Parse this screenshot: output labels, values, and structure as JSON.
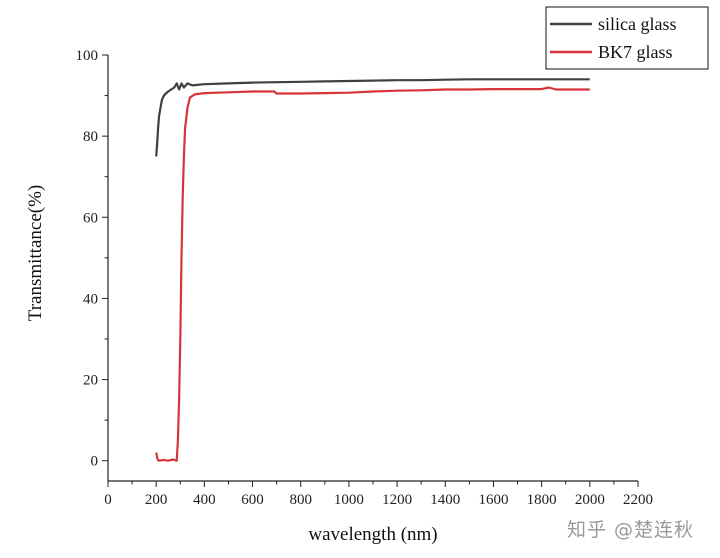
{
  "chart_data": {
    "type": "line",
    "title": "",
    "xlabel": "wavelength (nm)",
    "ylabel": "Transmittance(%)",
    "xlim": [
      0,
      2200
    ],
    "ylim": [
      -5,
      100
    ],
    "xticks": [
      0,
      200,
      400,
      600,
      800,
      1000,
      1200,
      1400,
      1600,
      1800,
      2000,
      2200
    ],
    "yticks": [
      0,
      20,
      40,
      60,
      80,
      100
    ],
    "grid": false,
    "legend": "top-right-outside",
    "series": [
      {
        "name": "silica glass",
        "color": "#404040",
        "x": [
          200,
          204,
          208,
          212,
          218,
          224,
          232,
          240,
          250,
          262,
          275,
          285,
          295,
          305,
          315,
          330,
          350,
          400,
          500,
          600,
          700,
          800,
          900,
          1000,
          1100,
          1200,
          1300,
          1400,
          1500,
          1600,
          1700,
          1800,
          1900,
          2000
        ],
        "y": [
          75,
          78,
          82,
          85,
          87,
          89,
          90,
          90.5,
          91,
          91.5,
          92,
          93,
          91.5,
          93,
          92,
          93,
          92.5,
          92.8,
          93,
          93.2,
          93.3,
          93.4,
          93.5,
          93.6,
          93.7,
          93.8,
          93.8,
          93.9,
          94,
          94,
          94,
          94,
          94,
          94
        ]
      },
      {
        "name": "BK7 glass",
        "color": "#d6333a",
        "x": [
          200,
          205,
          210,
          230,
          250,
          270,
          285,
          290,
          295,
          300,
          305,
          310,
          315,
          320,
          330,
          340,
          360,
          400,
          500,
          600,
          690,
          700,
          800,
          900,
          1000,
          1100,
          1200,
          1300,
          1400,
          1500,
          1600,
          1700,
          1800,
          1830,
          1860,
          1900,
          2000
        ],
        "y": [
          2,
          0.5,
          0,
          0.2,
          0,
          0.3,
          0,
          5,
          15,
          30,
          50,
          65,
          75,
          82,
          87,
          89.5,
          90.3,
          90.6,
          90.8,
          91,
          91,
          90.5,
          90.5,
          90.6,
          90.7,
          91,
          91.2,
          91.3,
          91.5,
          91.5,
          91.6,
          91.6,
          91.6,
          92,
          91.5,
          91.5,
          91.5
        ]
      }
    ]
  },
  "watermark": "知乎 @楚连秋"
}
